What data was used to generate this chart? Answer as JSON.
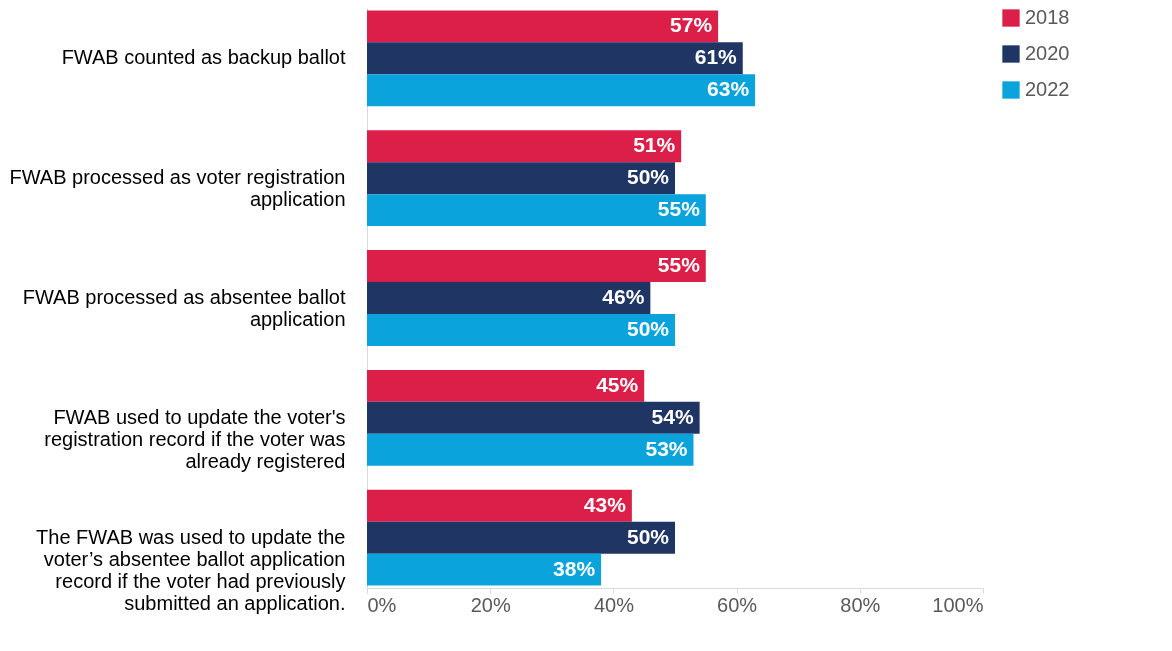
{
  "chart_data": {
    "type": "bar",
    "orientation": "horizontal",
    "categories": [
      "FWAB counted as backup ballot",
      "FWAB processed as voter registration application",
      "FWAB processed as absentee ballot application",
      "FWAB used to update the voter's registration record if the voter was already registered",
      "The FWAB was used to update the voter’s absentee ballot application record if the voter had previously submitted an application."
    ],
    "series": [
      {
        "name": "2018",
        "color": "#dc1f48",
        "values": [
          57,
          51,
          55,
          45,
          43
        ],
        "value_labels": [
          "57%",
          "51%",
          "55%",
          "45%",
          "43%"
        ]
      },
      {
        "name": "2020",
        "color": "#1f3564",
        "values": [
          61,
          50,
          46,
          54,
          50
        ],
        "value_labels": [
          "61%",
          "50%",
          "46%",
          "54%",
          "50%"
        ]
      },
      {
        "name": "2022",
        "color": "#0aa3dc",
        "values": [
          63,
          55,
          50,
          53,
          38
        ],
        "value_labels": [
          "63%",
          "55%",
          "50%",
          "53%",
          "38%"
        ]
      }
    ],
    "xlim": [
      0,
      100
    ],
    "xticks": [
      {
        "value": 0,
        "label": "0%"
      },
      {
        "value": 20,
        "label": "20%"
      },
      {
        "value": 40,
        "label": "40%"
      },
      {
        "value": 60,
        "label": "60%"
      },
      {
        "value": 80,
        "label": "80%"
      },
      {
        "value": 100,
        "label": "100%"
      }
    ],
    "legend": "right"
  }
}
